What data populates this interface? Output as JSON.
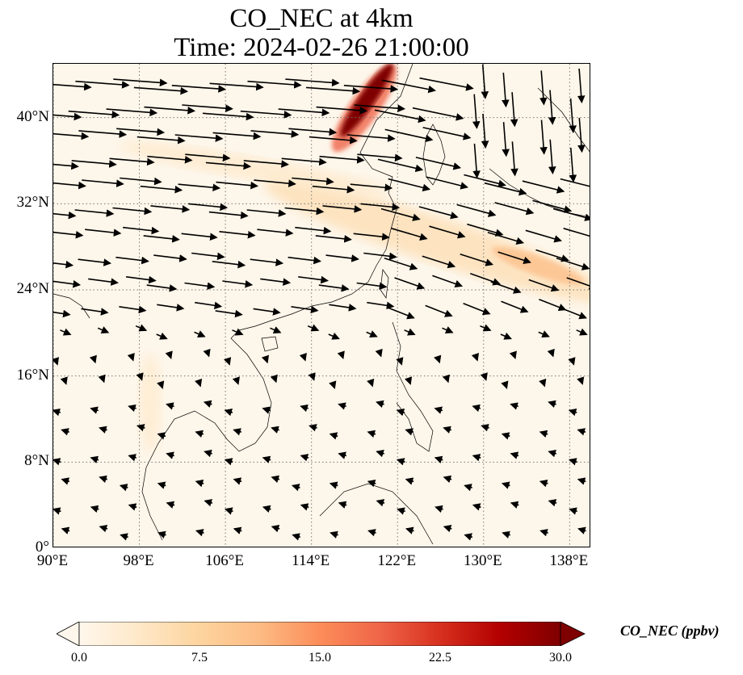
{
  "title": {
    "line1": "CO_NEC at 4km",
    "line2": "Time: 2024-02-26 21:00:00"
  },
  "map": {
    "extent": {
      "lon_min": 90,
      "lon_max": 140,
      "lat_min": 0,
      "lat_max": 45
    },
    "lat_ticks": [
      {
        "value": 0,
        "label": "0°"
      },
      {
        "value": 8,
        "label": "8°N"
      },
      {
        "value": 16,
        "label": "16°N"
      },
      {
        "value": 24,
        "label": "24°N"
      },
      {
        "value": 32,
        "label": "32°N"
      },
      {
        "value": 40,
        "label": "40°N"
      }
    ],
    "lon_ticks": [
      {
        "value": 90,
        "label": "90°E"
      },
      {
        "value": 98,
        "label": "98°E"
      },
      {
        "value": 106,
        "label": "106°E"
      },
      {
        "value": 114,
        "label": "114°E"
      },
      {
        "value": 122,
        "label": "122°E"
      },
      {
        "value": 130,
        "label": "130°E"
      },
      {
        "value": 138,
        "label": "138°E"
      }
    ],
    "gridlines": true,
    "background_color": "#fdf6ea",
    "coastline_color": "#000000",
    "vector_color": "#000000"
  },
  "colorbar": {
    "label": "CO_NEC (ppbv)",
    "min": 0.0,
    "max": 30.0,
    "ticks": [
      "0.0",
      "7.5",
      "15.0",
      "22.5",
      "30.0"
    ],
    "colormap": [
      "#fff7ec",
      "#fee8c8",
      "#fdd49e",
      "#fdbb84",
      "#fc8d59",
      "#ef6548",
      "#d7301f",
      "#b30000",
      "#7f0000"
    ],
    "extend": "both"
  }
}
